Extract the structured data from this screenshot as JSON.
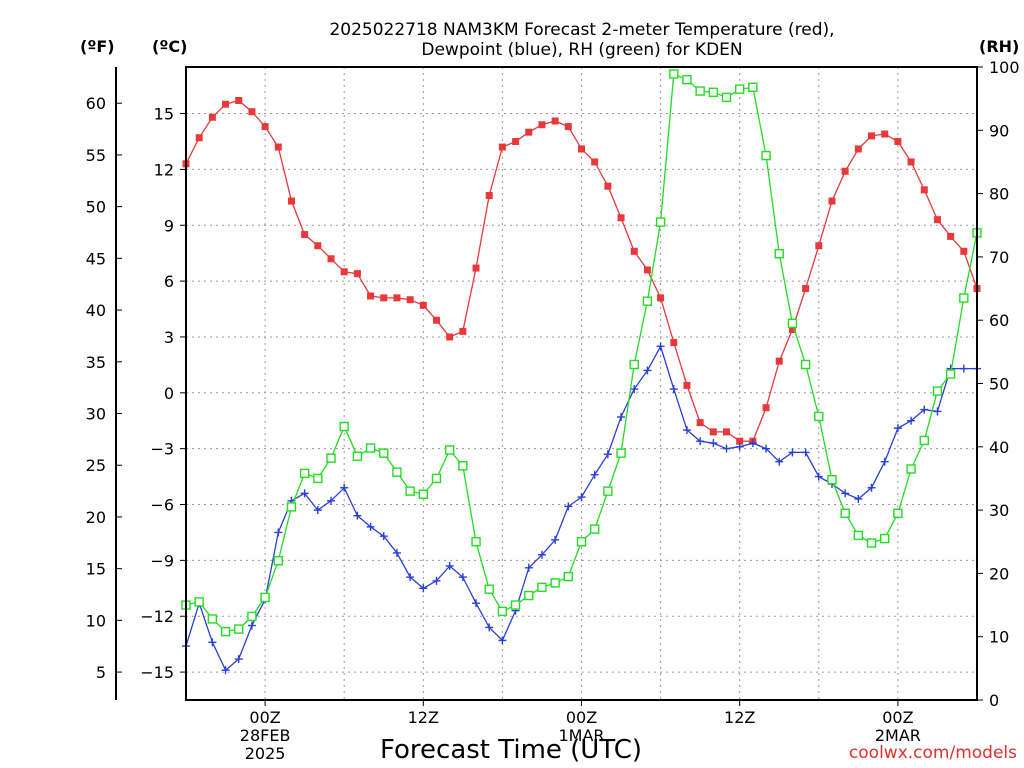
{
  "chart_data": {
    "type": "line",
    "title_line1": "2025022718 NAM3KM Forecast 2-meter Temperature (red),",
    "title_line2": "Dewpoint (blue), RH (green) for KDEN",
    "xlabel": "Forecast Time (UTC)",
    "credit": "coolwx.com/models",
    "unit_labels": {
      "fahrenheit": "(ºF)",
      "celsius": "(ºC)",
      "rh": "(RH)"
    },
    "celsius_axis": {
      "ylim": [
        -16.5,
        17.5
      ],
      "ticks": [
        -15,
        -12,
        -9,
        -6,
        -3,
        0,
        3,
        6,
        9,
        12,
        15
      ],
      "tick_labels": [
        "−15",
        "−12",
        "−9",
        "−6",
        "−3",
        "0",
        "3",
        "6",
        "9",
        "12",
        "15"
      ]
    },
    "fahrenheit_axis": {
      "ticks": [
        5,
        10,
        15,
        20,
        25,
        30,
        35,
        40,
        45,
        50,
        55,
        60
      ]
    },
    "rh_axis": {
      "ylim": [
        0,
        100
      ],
      "ticks": [
        0,
        10,
        20,
        30,
        40,
        50,
        60,
        70,
        80,
        90,
        100
      ]
    },
    "x_axis": {
      "xlim": [
        18,
        78
      ],
      "ticks": [
        {
          "hour": 24,
          "labels": [
            "00Z",
            "28FEB",
            "2025"
          ]
        },
        {
          "hour": 36,
          "labels": [
            "12Z"
          ]
        },
        {
          "hour": 48,
          "labels": [
            "00Z",
            "1MAR"
          ]
        },
        {
          "hour": 60,
          "labels": [
            "12Z"
          ]
        },
        {
          "hour": 72,
          "labels": [
            "00Z",
            "2MAR"
          ]
        }
      ],
      "grid_hours": [
        24,
        30,
        36,
        42,
        48,
        54,
        60,
        66,
        72
      ]
    },
    "grid": true,
    "x": [
      18,
      19,
      20,
      21,
      22,
      23,
      24,
      25,
      26,
      27,
      28,
      29,
      30,
      31,
      32,
      33,
      34,
      35,
      36,
      37,
      38,
      39,
      40,
      41,
      42,
      43,
      44,
      45,
      46,
      47,
      48,
      49,
      50,
      51,
      52,
      53,
      54,
      55,
      56,
      57,
      58,
      59,
      60,
      61,
      62,
      63,
      64,
      65,
      66,
      67,
      68,
      69,
      70,
      71,
      72,
      73,
      74,
      75,
      76,
      77,
      78
    ],
    "series": [
      {
        "name": "Temperature",
        "axis": "celsius",
        "color": "#e8383c",
        "marker": "filled-square",
        "values": [
          12.3,
          13.7,
          14.8,
          15.5,
          15.7,
          15.1,
          14.3,
          13.2,
          10.3,
          8.5,
          7.9,
          7.2,
          6.5,
          6.4,
          5.2,
          5.1,
          5.1,
          5.0,
          4.7,
          3.9,
          3.0,
          3.3,
          6.7,
          10.6,
          13.2,
          13.5,
          14.0,
          14.4,
          14.6,
          14.3,
          13.1,
          12.4,
          11.1,
          9.4,
          7.6,
          6.6,
          5.1,
          2.7,
          0.4,
          -1.6,
          -2.1,
          -2.1,
          -2.6,
          -2.6,
          -0.8,
          1.7,
          3.4,
          5.6,
          7.9,
          10.3,
          11.9,
          13.1,
          13.8,
          13.9,
          13.5,
          12.4,
          10.9,
          9.3,
          8.4,
          7.6,
          5.6
        ]
      },
      {
        "name": "Dewpoint",
        "axis": "celsius",
        "color": "#2a3ed8",
        "marker": "plus",
        "values": [
          -13.6,
          -11.3,
          -13.4,
          -14.9,
          -14.3,
          -12.5,
          -11.1,
          -7.5,
          -5.8,
          -5.4,
          -6.3,
          -5.8,
          -5.1,
          -6.6,
          -7.2,
          -7.7,
          -8.6,
          -9.9,
          -10.5,
          -10.1,
          -9.3,
          -9.9,
          -11.3,
          -12.6,
          -13.3,
          -11.7,
          -9.4,
          -8.7,
          -7.9,
          -6.1,
          -5.6,
          -4.4,
          -3.3,
          -1.3,
          0.2,
          1.2,
          2.5,
          0.2,
          -2.0,
          -2.6,
          -2.7,
          -3.0,
          -2.9,
          -2.7,
          -3.0,
          -3.7,
          -3.2,
          -3.2,
          -4.5,
          -4.9,
          -5.4,
          -5.7,
          -5.1,
          -3.7,
          -1.9,
          -1.5,
          -0.9,
          -1.0,
          1.3,
          1.3,
          1.3
        ]
      },
      {
        "name": "RH",
        "axis": "rh",
        "color": "#22dd22",
        "marker": "open-square",
        "values": [
          15.0,
          15.5,
          12.8,
          10.8,
          11.2,
          13.2,
          16.2,
          22.0,
          30.5,
          35.8,
          35.0,
          38.2,
          43.2,
          38.5,
          39.8,
          39.0,
          36.0,
          33.0,
          32.5,
          35.0,
          39.5,
          37.0,
          25.0,
          17.5,
          14.0,
          15.0,
          16.5,
          17.8,
          18.5,
          19.5,
          25.0,
          27.0,
          33.0,
          39.0,
          53.0,
          63.0,
          75.5,
          98.9,
          98.0,
          96.2,
          96.0,
          95.2,
          96.5,
          96.8,
          86.0,
          70.5,
          59.5,
          53.0,
          44.8,
          34.8,
          29.5,
          26.0,
          24.8,
          25.5,
          29.5,
          36.5,
          41.0,
          48.8,
          51.5,
          63.5,
          73.8
        ]
      }
    ]
  }
}
